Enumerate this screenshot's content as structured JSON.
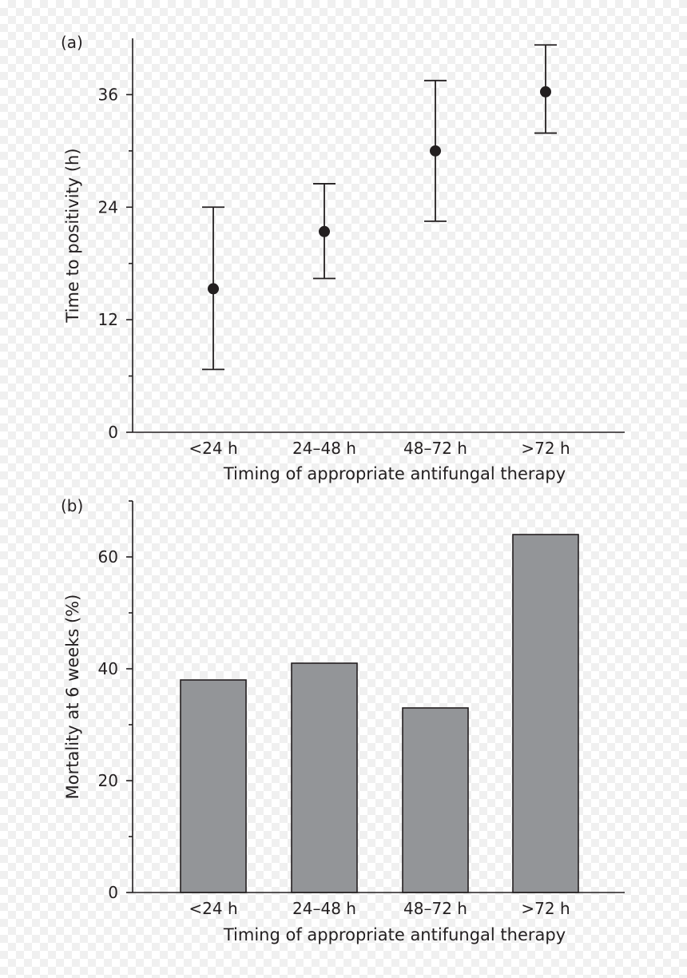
{
  "chart_data": [
    {
      "panel_label": "(a)",
      "type": "scatter",
      "subtype": "point-with-error-bars",
      "categories": [
        "<24 h",
        "24–48 h",
        "48–72 h",
        ">72 h"
      ],
      "values": [
        15.3,
        21.4,
        30.0,
        36.3
      ],
      "error_low": [
        6.7,
        16.4,
        22.5,
        31.9
      ],
      "error_high": [
        24.0,
        26.5,
        37.5,
        41.3
      ],
      "xlabel": "Timing of appropriate antifungal therapy",
      "ylabel": "Time to positivity (h)",
      "ylim": [
        0,
        42
      ],
      "yticks": [
        0,
        12,
        24,
        36
      ],
      "yticks_minor": [
        6,
        18,
        30
      ],
      "ytick_labels": [
        "0",
        "12",
        "24",
        "36"
      ],
      "grid": false
    },
    {
      "panel_label": "(b)",
      "type": "bar",
      "categories": [
        "<24 h",
        "24–48 h",
        "48–72 h",
        ">72 h"
      ],
      "values": [
        38,
        41,
        33,
        64
      ],
      "xlabel": "Timing of appropriate antifungal therapy",
      "ylabel": "Mortality at 6 weeks (%)",
      "ylim": [
        0,
        70
      ],
      "yticks": [
        0,
        20,
        40,
        60
      ],
      "yticks_minor": [
        10,
        30,
        50,
        70
      ],
      "ytick_labels": [
        "0",
        "20",
        "40",
        "60"
      ],
      "bar_color": "#939598",
      "grid": false
    }
  ]
}
